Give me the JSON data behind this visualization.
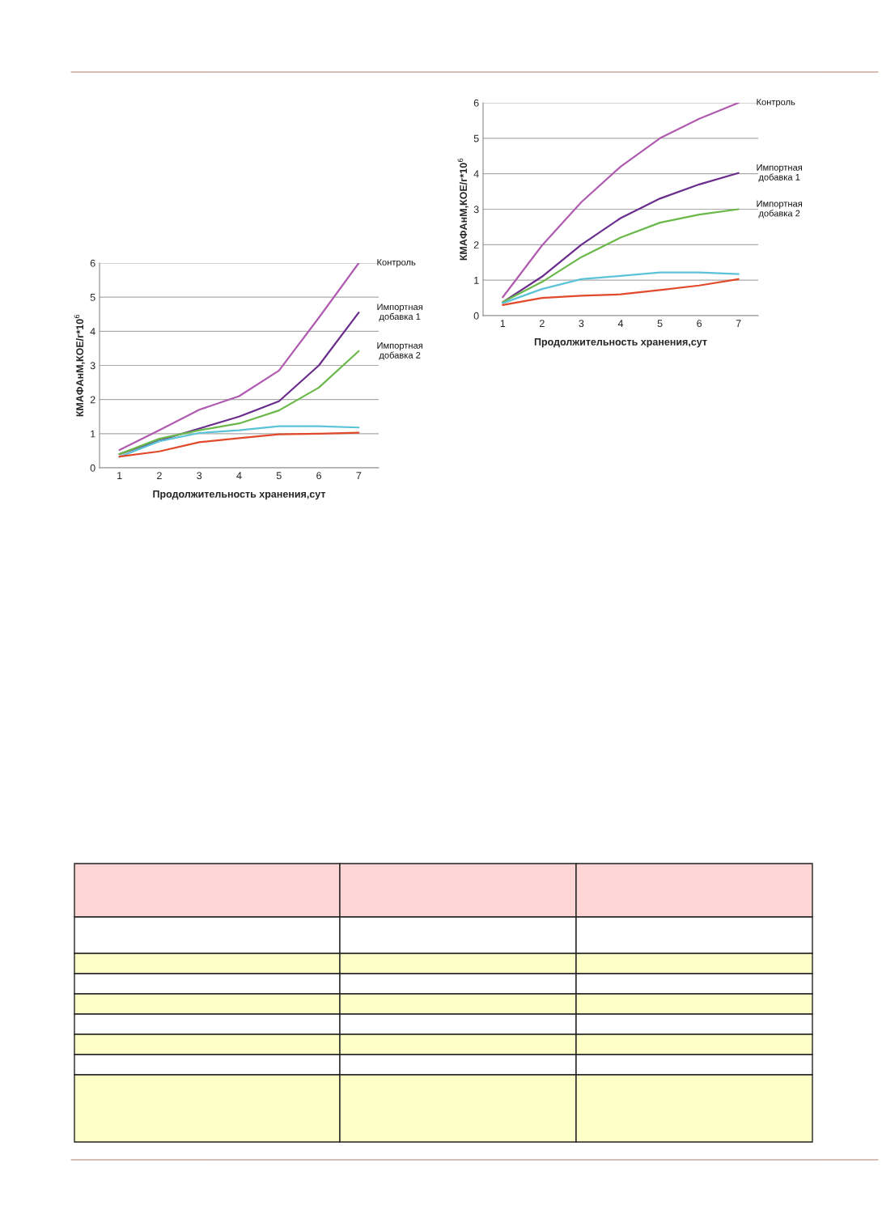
{
  "chart_data": [
    {
      "type": "line",
      "categories": [
        "1",
        "2",
        "3",
        "4",
        "5",
        "6",
        "7"
      ],
      "xlabel": "Продолжительность хранения,сут",
      "ylabel": "КМАФАнМ,КОЕ/г*10$^{6}$",
      "ylim": [
        0,
        6
      ],
      "yticks": [
        0,
        1,
        2,
        3,
        4,
        5,
        6
      ],
      "grid": "y",
      "series": [
        {
          "name": "Контроль",
          "color": "#b05bb0",
          "values": [
            0.52,
            1.1,
            1.7,
            2.1,
            2.85,
            4.4,
            6.0
          ]
        },
        {
          "name": "Импортная добавка 1",
          "color": "#6a2d8c",
          "values": [
            0.4,
            0.8,
            1.15,
            1.5,
            1.95,
            3.0,
            4.55
          ]
        },
        {
          "name": "Импортная добавка 2",
          "color": "#6ab84a",
          "values": [
            0.4,
            0.85,
            1.1,
            1.3,
            1.68,
            2.35,
            3.42
          ]
        },
        {
          "color": "#5bc3d8",
          "values": [
            0.32,
            0.78,
            1.02,
            1.1,
            1.22,
            1.22,
            1.18
          ]
        },
        {
          "color": "#e04a2a",
          "values": [
            0.33,
            0.48,
            0.75,
            0.87,
            0.98,
            1.0,
            1.03
          ]
        }
      ]
    },
    {
      "type": "line",
      "categories": [
        "1",
        "2",
        "3",
        "4",
        "5",
        "6",
        "7"
      ],
      "xlabel": "Продолжительность хранения,сут",
      "ylabel": "КМАФАнМ,КОЕ/г*10$^{6}$",
      "ylim": [
        0,
        6
      ],
      "yticks": [
        0,
        1,
        2,
        3,
        4,
        5,
        6
      ],
      "grid": "y",
      "series": [
        {
          "name": "Контроль",
          "color": "#b05bb0",
          "values": [
            0.52,
            1.98,
            3.2,
            4.2,
            5.0,
            5.55,
            6.0
          ]
        },
        {
          "name": "Импортная добавка 1",
          "color": "#6a2d8c",
          "values": [
            0.38,
            1.1,
            2.0,
            2.75,
            3.3,
            3.7,
            4.02
          ]
        },
        {
          "name": "Импортная добавка 2",
          "color": "#6ab84a",
          "values": [
            0.38,
            0.95,
            1.65,
            2.2,
            2.62,
            2.85,
            3.0
          ]
        },
        {
          "color": "#5bc3d8",
          "values": [
            0.35,
            0.75,
            1.03,
            1.12,
            1.22,
            1.22,
            1.17
          ]
        },
        {
          "color": "#e04a2a",
          "values": [
            0.3,
            0.5,
            0.56,
            0.6,
            0.72,
            0.85,
            1.03
          ]
        }
      ]
    }
  ]
}
